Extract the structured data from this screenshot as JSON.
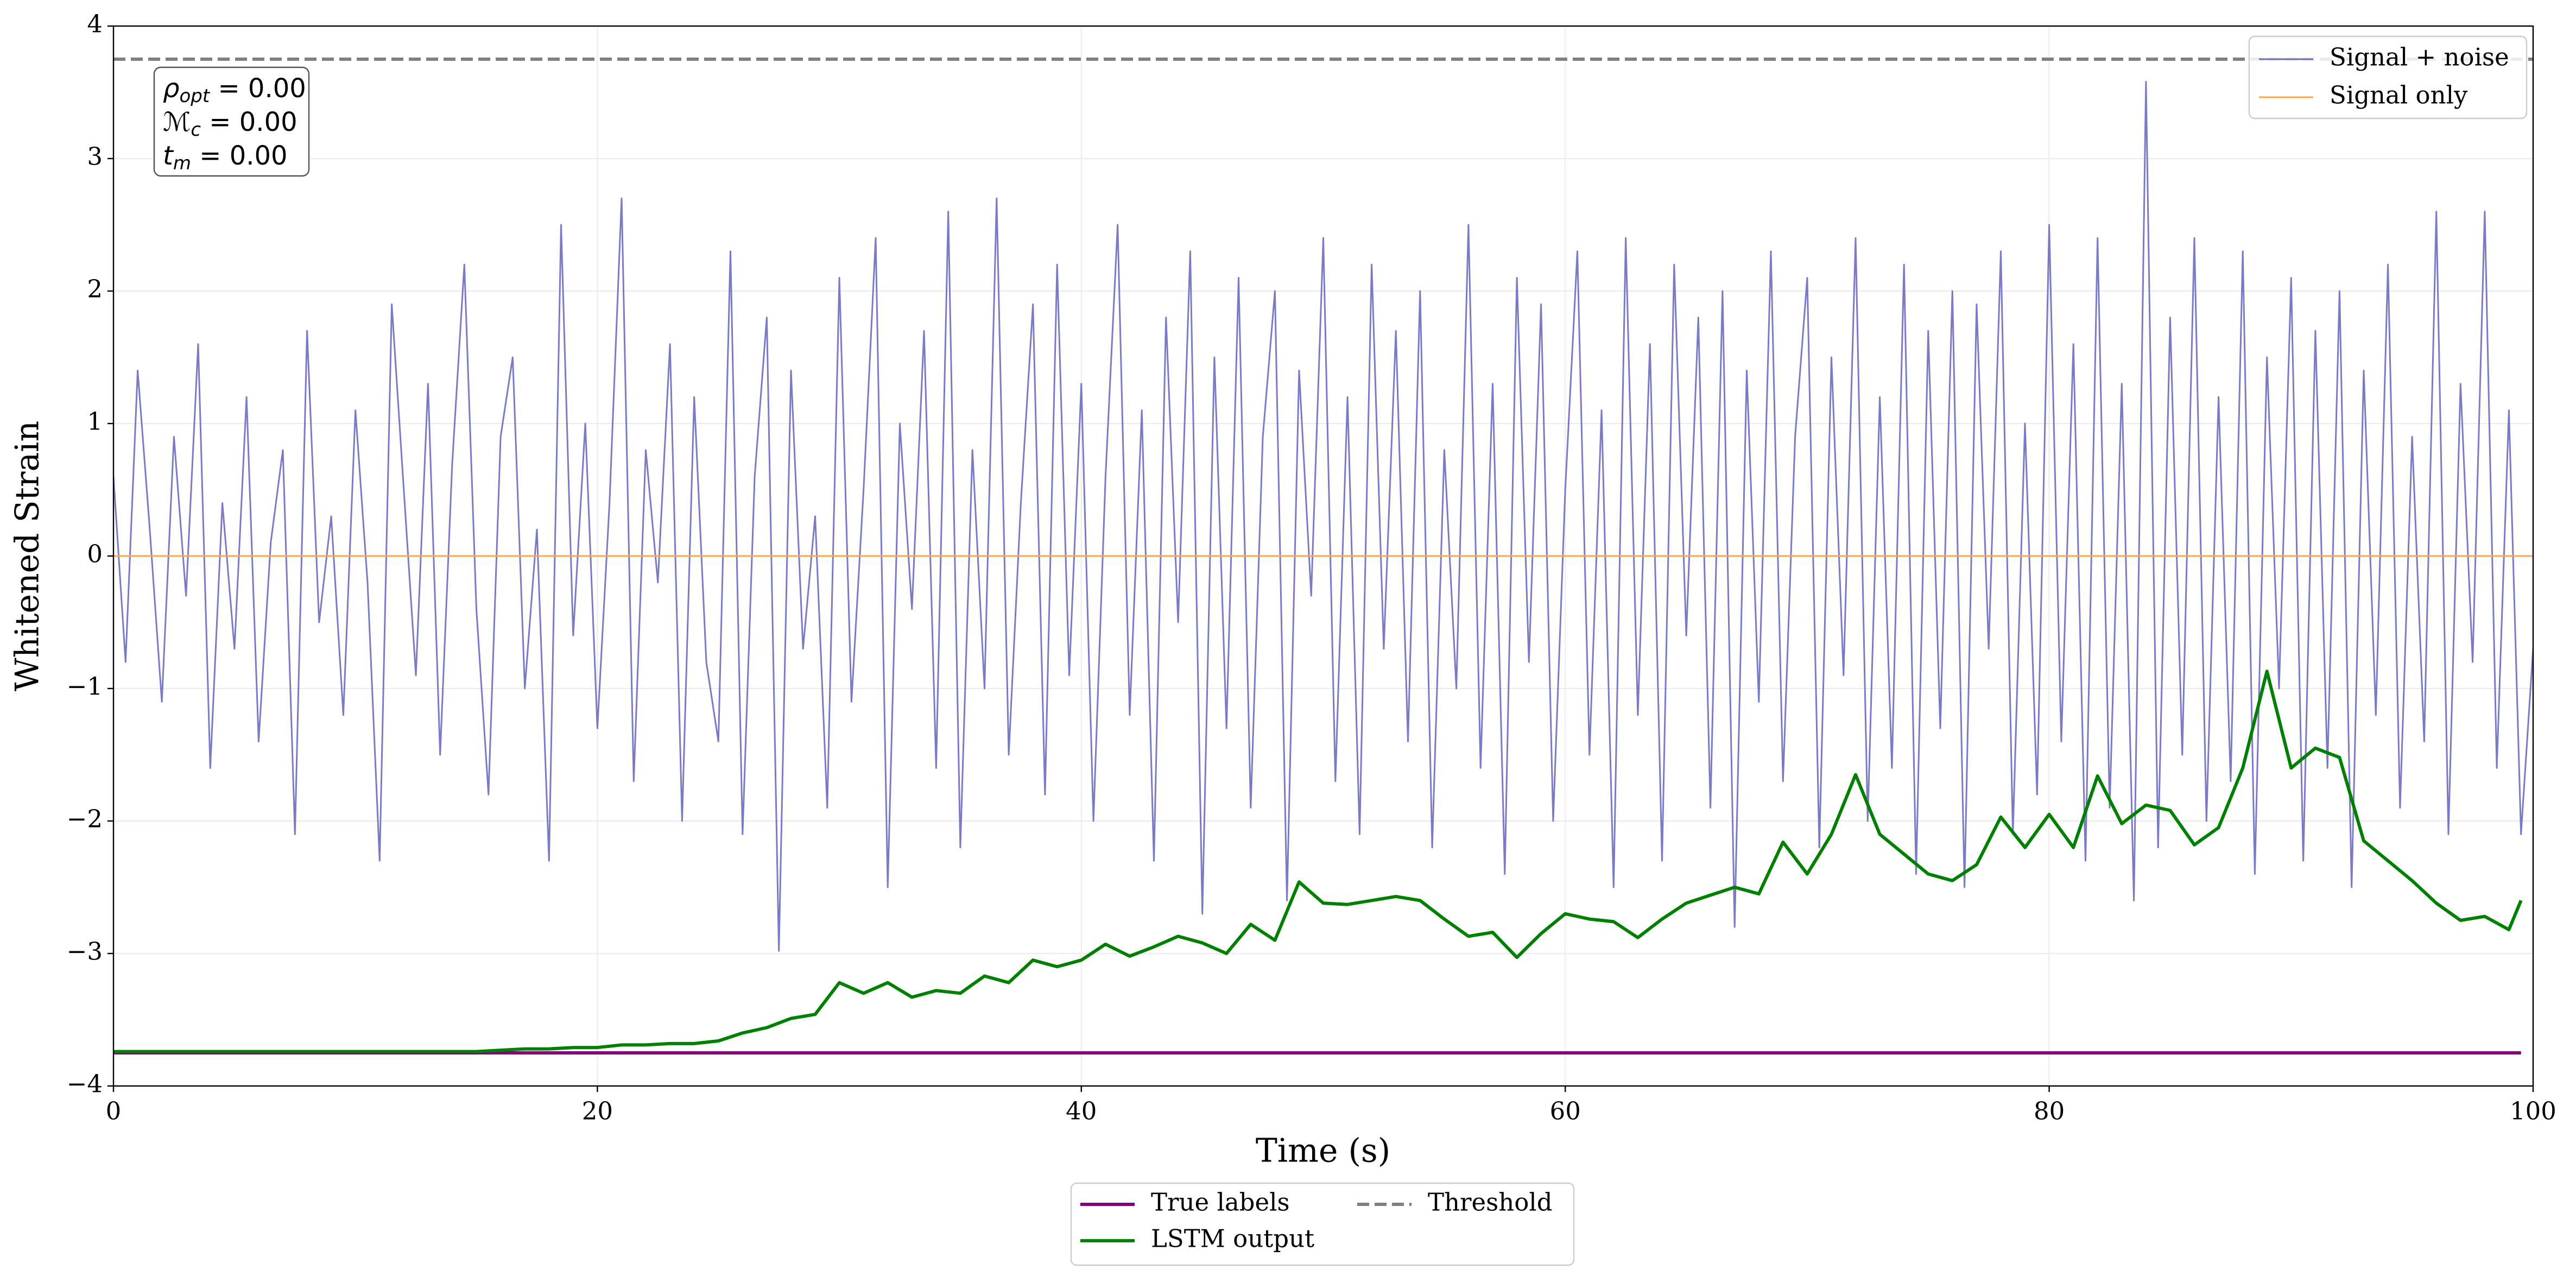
{
  "chart_data": {
    "type": "line",
    "xlabel": "Time (s)",
    "ylabel": "Whitened Strain",
    "xlim": [
      0,
      100
    ],
    "ylim": [
      -4,
      4
    ],
    "xticks": [
      0,
      20,
      40,
      60,
      80,
      100
    ],
    "yticks": [
      {
        "value": -4,
        "label": "−4"
      },
      {
        "value": -3,
        "label": "−3"
      },
      {
        "value": -2,
        "label": "−2"
      },
      {
        "value": -1,
        "label": "−1"
      },
      0,
      1,
      2,
      3,
      4
    ],
    "grid": true,
    "annotations": [
      {
        "symbol": "ρ",
        "subscript": "opt",
        "text": " = 0.00"
      },
      {
        "symbol": "ℳ",
        "subscript": "c",
        "text": " = 0.00"
      },
      {
        "symbol": "t",
        "subscript": "m",
        "text": " = 0.00"
      }
    ],
    "series": [
      {
        "name": "Signal + noise",
        "color": "#6b6bbf",
        "legend": "upper right",
        "x": [
          0,
          0.5,
          1,
          1.5,
          2,
          2.5,
          3,
          3.5,
          4,
          4.5,
          5,
          5.5,
          6,
          6.5,
          7,
          7.5,
          8,
          8.5,
          9,
          9.5,
          10,
          10.5,
          11,
          11.5,
          12,
          12.5,
          13,
          13.5,
          14,
          14.5,
          15,
          15.5,
          16,
          16.5,
          17,
          17.5,
          18,
          18.5,
          19,
          19.5,
          20,
          20.5,
          21,
          21.5,
          22,
          22.5,
          23,
          23.5,
          24,
          24.5,
          25,
          25.5,
          26,
          26.5,
          27,
          27.5,
          28,
          28.5,
          29,
          29.5,
          30,
          30.5,
          31,
          31.5,
          32,
          32.5,
          33,
          33.5,
          34,
          34.5,
          35,
          35.5,
          36,
          36.5,
          37,
          37.5,
          38,
          38.5,
          39,
          39.5,
          40,
          40.5,
          41,
          41.5,
          42,
          42.5,
          43,
          43.5,
          44,
          44.5,
          45,
          45.5,
          46,
          46.5,
          47,
          47.5,
          48,
          48.5,
          49,
          49.5,
          50,
          50.5,
          51,
          51.5,
          52,
          52.5,
          53,
          53.5,
          54,
          54.5,
          55,
          55.5,
          56,
          56.5,
          57,
          57.5,
          58,
          58.5,
          59,
          59.5,
          60,
          60.5,
          61,
          61.5,
          62,
          62.5,
          63,
          63.5,
          64,
          64.5,
          65,
          65.5,
          66,
          66.5,
          67,
          67.5,
          68,
          68.5,
          69,
          69.5,
          70,
          70.5,
          71,
          71.5,
          72,
          72.5,
          73,
          73.5,
          74,
          74.5,
          75,
          75.5,
          76,
          76.5,
          77,
          77.5,
          78,
          78.5,
          79,
          79.5,
          80,
          80.5,
          81,
          81.5,
          82,
          82.5,
          83,
          83.5,
          84,
          84.5,
          85,
          85.5,
          86,
          86.5,
          87,
          87.5,
          88,
          88.5,
          89,
          89.5,
          90,
          90.5,
          91,
          91.5,
          92,
          92.5,
          93,
          93.5,
          94,
          94.5,
          95,
          95.5,
          96,
          96.5,
          97,
          97.5,
          98,
          98.5,
          99,
          99.5,
          100
        ],
        "values": [
          0.6,
          -0.8,
          1.4,
          0.2,
          -1.1,
          0.9,
          -0.3,
          1.6,
          -1.6,
          0.4,
          -0.7,
          1.2,
          -1.4,
          0.1,
          0.8,
          -2.1,
          1.7,
          -0.5,
          0.3,
          -1.2,
          1.1,
          -0.2,
          -2.3,
          1.9,
          0.5,
          -0.9,
          1.3,
          -1.5,
          0.7,
          2.2,
          -0.4,
          -1.8,
          0.9,
          1.5,
          -1.0,
          0.2,
          -2.3,
          2.5,
          -0.6,
          1.0,
          -1.3,
          0.4,
          2.7,
          -1.7,
          0.8,
          -0.2,
          1.6,
          -2.0,
          1.2,
          -0.8,
          -1.4,
          2.3,
          -2.1,
          0.6,
          1.8,
          -2.98,
          1.4,
          -0.7,
          0.3,
          -1.9,
          2.1,
          -1.1,
          0.5,
          2.4,
          -2.5,
          1.0,
          -0.4,
          1.7,
          -1.6,
          2.6,
          -2.2,
          0.8,
          -1.0,
          2.7,
          -1.5,
          0.4,
          1.9,
          -1.8,
          2.2,
          -0.9,
          1.3,
          -2.0,
          0.6,
          2.5,
          -1.2,
          1.1,
          -2.3,
          1.8,
          -0.5,
          2.3,
          -2.7,
          1.5,
          -1.3,
          2.1,
          -1.9,
          0.9,
          2.0,
          -2.6,
          1.4,
          -0.3,
          2.4,
          -1.7,
          1.2,
          -2.1,
          2.2,
          -0.7,
          1.7,
          -1.4,
          2.0,
          -2.2,
          0.8,
          -1.0,
          2.5,
          -1.6,
          1.3,
          -2.4,
          2.1,
          -0.8,
          1.9,
          -2.0,
          0.5,
          2.3,
          -1.5,
          1.1,
          -2.5,
          2.4,
          -1.2,
          1.6,
          -2.3,
          2.2,
          -0.6,
          1.8,
          -1.9,
          2.0,
          -2.8,
          1.4,
          -1.1,
          2.3,
          -1.7,
          0.9,
          2.1,
          -2.2,
          1.5,
          -0.9,
          2.4,
          -2.0,
          1.2,
          -1.6,
          2.2,
          -2.4,
          1.7,
          -1.3,
          2.0,
          -2.5,
          1.9,
          -0.7,
          2.3,
          -2.1,
          1.0,
          -1.8,
          2.5,
          -1.4,
          1.6,
          -2.3,
          2.4,
          -1.9,
          1.3,
          -2.6,
          3.58,
          -2.2,
          1.8,
          -1.5,
          2.4,
          -2.0,
          1.2,
          -1.7,
          2.3,
          -2.4,
          1.5,
          -1.0,
          2.1,
          -2.3,
          1.7,
          -1.6,
          2.0,
          -2.5,
          1.4,
          -1.2,
          2.2,
          -1.9,
          0.9,
          -1.4,
          2.6,
          -2.1,
          1.3,
          -0.8,
          2.6,
          -1.6,
          1.1,
          -2.1,
          -0.7
        ]
      },
      {
        "name": "Signal only",
        "color": "#ffa64d",
        "legend": "upper right",
        "x": [
          0,
          100
        ],
        "values": [
          0,
          0
        ]
      },
      {
        "name": "True labels",
        "color": "#800080",
        "legend": "lower center outside",
        "x": [
          0,
          99.5
        ],
        "values": [
          -3.75,
          -3.75
        ]
      },
      {
        "name": "LSTM output",
        "color": "#008000",
        "legend": "lower center outside",
        "x": [
          0,
          1,
          2,
          3,
          4,
          5,
          6,
          7,
          8,
          9,
          10,
          11,
          12,
          13,
          14,
          15,
          16,
          17,
          18,
          19,
          20,
          21,
          22,
          23,
          24,
          25,
          26,
          27,
          28,
          29,
          30,
          31,
          32,
          33,
          34,
          35,
          36,
          37,
          38,
          39,
          40,
          41,
          42,
          43,
          44,
          45,
          46,
          47,
          48,
          49,
          50,
          51,
          52,
          53,
          54,
          55,
          56,
          57,
          58,
          59,
          60,
          61,
          62,
          63,
          64,
          65,
          66,
          67,
          68,
          69,
          70,
          71,
          72,
          73,
          74,
          75,
          76,
          77,
          78,
          79,
          80,
          81,
          82,
          83,
          84,
          85,
          86,
          87,
          88,
          89,
          90,
          91,
          92,
          93,
          94,
          95,
          96,
          97,
          98,
          99,
          99.5
        ],
        "values": [
          -3.74,
          -3.74,
          -3.74,
          -3.74,
          -3.74,
          -3.74,
          -3.74,
          -3.74,
          -3.74,
          -3.74,
          -3.74,
          -3.74,
          -3.74,
          -3.74,
          -3.74,
          -3.74,
          -3.73,
          -3.72,
          -3.72,
          -3.71,
          -3.71,
          -3.69,
          -3.69,
          -3.68,
          -3.68,
          -3.66,
          -3.6,
          -3.56,
          -3.49,
          -3.46,
          -3.22,
          -3.3,
          -3.22,
          -3.33,
          -3.28,
          -3.3,
          -3.17,
          -3.22,
          -3.05,
          -3.1,
          -3.05,
          -2.93,
          -3.02,
          -2.95,
          -2.87,
          -2.92,
          -3.0,
          -2.78,
          -2.9,
          -2.46,
          -2.62,
          -2.63,
          -2.6,
          -2.57,
          -2.6,
          -2.74,
          -2.87,
          -2.84,
          -3.03,
          -2.85,
          -2.7,
          -2.74,
          -2.76,
          -2.88,
          -2.74,
          -2.62,
          -2.56,
          -2.5,
          -2.55,
          -2.16,
          -2.4,
          -2.1,
          -1.65,
          -2.1,
          -2.25,
          -2.4,
          -2.45,
          -2.33,
          -1.97,
          -2.2,
          -1.95,
          -2.2,
          -1.66,
          -2.02,
          -1.88,
          -1.92,
          -2.18,
          -2.05,
          -1.6,
          -0.87,
          -1.6,
          -1.45,
          -1.52,
          -2.15,
          -2.3,
          -2.45,
          -2.62,
          -2.75,
          -2.72,
          -2.82,
          -2.6
        ]
      },
      {
        "name": "Threshold",
        "color": "#808080",
        "dash": true,
        "legend": "lower center outside",
        "x": [
          0,
          100
        ],
        "values": [
          3.75,
          3.75
        ]
      }
    ]
  }
}
